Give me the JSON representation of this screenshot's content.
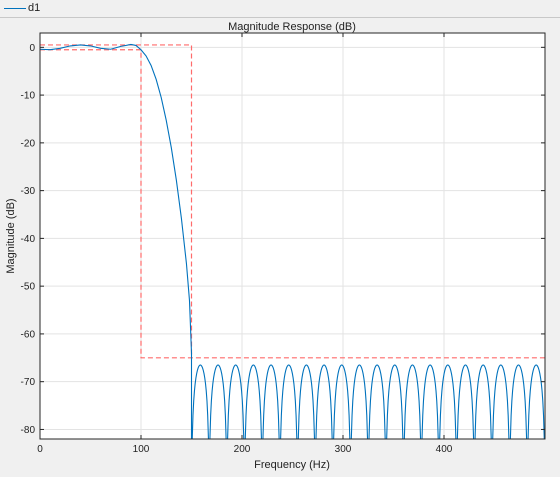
{
  "legend": {
    "entries": [
      {
        "name": "d1",
        "color": "#0072bd"
      }
    ]
  },
  "chart_data": {
    "type": "line",
    "title": "Magnitude Response (dB)",
    "xlabel": "Frequency (Hz)",
    "ylabel": "Magnitude (dB)",
    "xlim": [
      0,
      500
    ],
    "ylim": [
      -82,
      3
    ],
    "xticks": [
      0,
      100,
      200,
      300,
      400
    ],
    "yticks": [
      0,
      -10,
      -20,
      -30,
      -40,
      -50,
      -60,
      -70,
      -80
    ],
    "grid": true,
    "colors": {
      "series": "#0072bd",
      "mask": "#ff6b6b",
      "grid": "#e3e3e3"
    },
    "series": [
      {
        "name": "d1",
        "passband": {
          "x": [
            0,
            10,
            20,
            30,
            40,
            50,
            60,
            70,
            80,
            90,
            95,
            100,
            105,
            110,
            115,
            120,
            125,
            130,
            135,
            140,
            145,
            148,
            150
          ],
          "y": [
            -0.4,
            -0.5,
            -0.2,
            0.3,
            0.5,
            0.3,
            -0.2,
            -0.4,
            0.2,
            0.6,
            0.4,
            -0.5,
            -1.8,
            -3.8,
            -6.7,
            -10.5,
            -15.3,
            -21,
            -27.8,
            -35.8,
            -45.3,
            -53,
            -64
          ]
        },
        "stopband": {
          "start": 150,
          "end": 500,
          "lobes": 20,
          "peak": -66.5,
          "floor": -82
        }
      }
    ],
    "mask": {
      "passband_upper": {
        "x": [
          0,
          150,
          150
        ],
        "y": [
          0.5,
          0.5,
          -64.5
        ]
      },
      "passband_lower": {
        "x": [
          0,
          100,
          100,
          500
        ],
        "y": [
          -0.5,
          -0.5,
          -65,
          -65
        ]
      }
    }
  }
}
